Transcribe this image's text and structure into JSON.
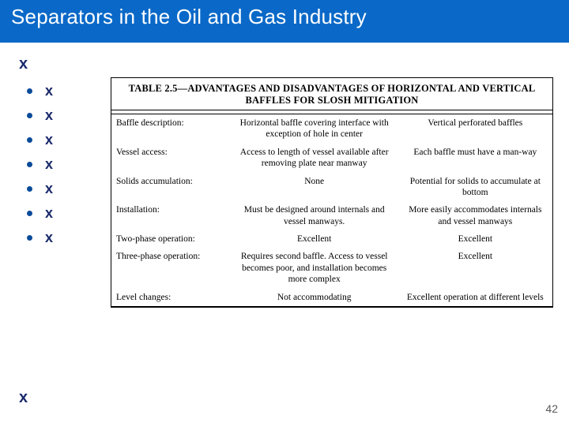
{
  "colors": {
    "header_bg": "#0a69c8",
    "title_text": "#ffffff",
    "bullet_dot": "#0a4b9a",
    "x_text": "#1a2a6c",
    "page_num": "#5a5a5a",
    "table_border": "#000000",
    "body_text": "#000000"
  },
  "title": "Separators in the Oil and Gas Industry",
  "x_top": "x",
  "bullets": [
    "x",
    "x",
    "x",
    "x",
    "x",
    "x",
    "x"
  ],
  "x_bottom": "x",
  "page_number": "42",
  "table": {
    "heading": "TABLE 2.5—ADVANTAGES AND DISADVANTAGES OF HORIZONTAL AND VERTICAL BAFFLES FOR SLOSH MITIGATION",
    "rows": [
      {
        "label": "Baffle description:",
        "horiz": "Horizontal baffle covering interface with exception of hole in center",
        "vert": "Vertical perforated baffles"
      },
      {
        "label": "Vessel access:",
        "horiz": "Access to length of vessel available after removing plate near manway",
        "vert": "Each baffle must have a man-way"
      },
      {
        "label": "Solids accumulation:",
        "horiz": "None",
        "vert": "Potential for solids to accumulate at bottom"
      },
      {
        "label": "Installation:",
        "horiz": "Must be designed around internals and vessel manways.",
        "vert": "More easily accommodates internals and vessel manways"
      },
      {
        "label": "Two-phase operation:",
        "horiz": "Excellent",
        "vert": "Excellent"
      },
      {
        "label": "Three-phase operation:",
        "horiz": "Requires second baffle. Access to vessel becomes poor, and installation becomes more complex",
        "vert": "Excellent"
      },
      {
        "label": "Level changes:",
        "horiz": "Not accommodating",
        "vert": "Excellent operation at different levels"
      }
    ]
  }
}
